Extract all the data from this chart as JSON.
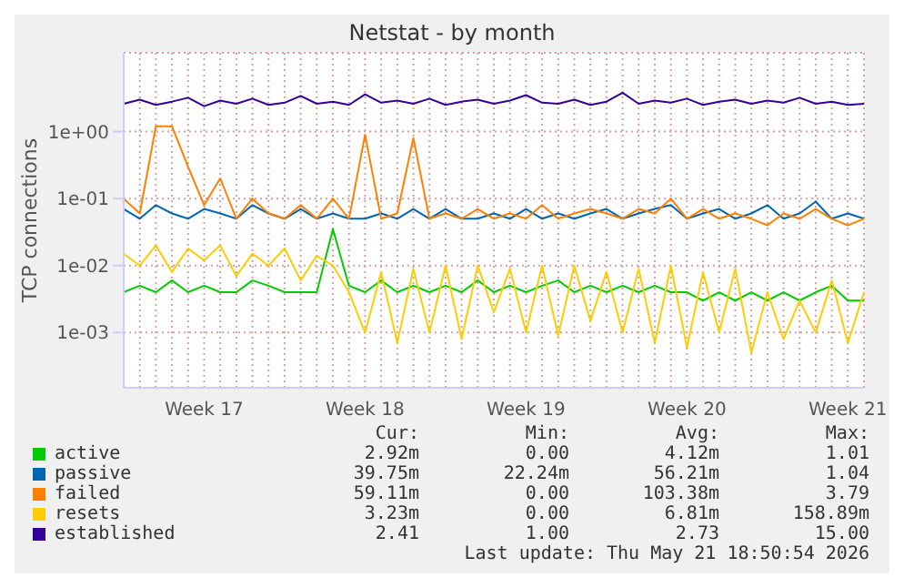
{
  "chart_data": {
    "type": "line",
    "title": "Netstat - by month",
    "ylabel": "TCP connections",
    "log": "y",
    "grid": true,
    "legend": "bottom",
    "marker": "none",
    "line_style": "solid",
    "categories": [
      null,
      null,
      null,
      null,
      null,
      "Week 17",
      null,
      null,
      null,
      null,
      null,
      null,
      null,
      null,
      null,
      "Week 18",
      null,
      null,
      null,
      null,
      null,
      null,
      null,
      null,
      null,
      "Week 19",
      null,
      null,
      null,
      null,
      null,
      null,
      null,
      null,
      null,
      "Week 20",
      null,
      null,
      null,
      null,
      null,
      null,
      null,
      null,
      null,
      "Week 21",
      null
    ],
    "ylim": [
      0.00015,
      15
    ],
    "yticks": [
      {
        "value": 0.001,
        "label": "1e-03"
      },
      {
        "value": 0.01,
        "label": "1e-02"
      },
      {
        "value": 0.1,
        "label": "1e-01"
      },
      {
        "value": 1,
        "label": "1e+00"
      }
    ],
    "series": [
      {
        "name": "active",
        "color": "#00cc00",
        "values": [
          0.004,
          0.005,
          0.004,
          0.006,
          0.004,
          0.005,
          0.004,
          0.004,
          0.006,
          0.005,
          0.004,
          0.004,
          0.004,
          0.035,
          0.005,
          0.004,
          0.006,
          0.004,
          0.005,
          0.004,
          0.005,
          0.004,
          0.006,
          0.004,
          0.005,
          0.004,
          0.005,
          0.006,
          0.004,
          0.005,
          0.004,
          0.005,
          0.004,
          0.005,
          0.004,
          0.004,
          0.003,
          0.004,
          0.003,
          0.004,
          0.003,
          0.004,
          0.003,
          0.004,
          0.005,
          0.003,
          0.003
        ]
      },
      {
        "name": "passive",
        "color": "#0066b3",
        "values": [
          0.07,
          0.05,
          0.08,
          0.06,
          0.05,
          0.07,
          0.06,
          0.05,
          0.08,
          0.06,
          0.05,
          0.07,
          0.05,
          0.06,
          0.05,
          0.05,
          0.06,
          0.05,
          0.07,
          0.05,
          0.07,
          0.05,
          0.05,
          0.06,
          0.05,
          0.07,
          0.05,
          0.06,
          0.05,
          0.06,
          0.07,
          0.05,
          0.06,
          0.07,
          0.08,
          0.05,
          0.06,
          0.07,
          0.05,
          0.06,
          0.08,
          0.05,
          0.06,
          0.09,
          0.05,
          0.06,
          0.05
        ]
      },
      {
        "name": "failed",
        "color": "#ff8000",
        "values": [
          0.1,
          0.06,
          1.2,
          1.2,
          0.3,
          0.08,
          0.2,
          0.05,
          0.1,
          0.06,
          0.05,
          0.08,
          0.05,
          0.1,
          0.05,
          0.9,
          0.05,
          0.06,
          0.8,
          0.05,
          0.06,
          0.05,
          0.07,
          0.05,
          0.06,
          0.05,
          0.08,
          0.05,
          0.06,
          0.07,
          0.06,
          0.05,
          0.07,
          0.06,
          0.1,
          0.05,
          0.07,
          0.05,
          0.06,
          0.05,
          0.04,
          0.06,
          0.05,
          0.07,
          0.05,
          0.04,
          0.05
        ]
      },
      {
        "name": "resets",
        "color": "#ffcc00",
        "values": [
          0.015,
          0.01,
          0.02,
          0.008,
          0.018,
          0.012,
          0.02,
          0.007,
          0.015,
          0.01,
          0.018,
          0.006,
          0.014,
          0.01,
          0.004,
          0.001,
          0.008,
          0.0007,
          0.009,
          0.001,
          0.01,
          0.0008,
          0.01,
          0.002,
          0.009,
          0.001,
          0.01,
          0.0009,
          0.01,
          0.0015,
          0.008,
          0.001,
          0.009,
          0.0007,
          0.01,
          0.0006,
          0.008,
          0.001,
          0.009,
          0.0005,
          0.004,
          0.0008,
          0.003,
          0.001,
          0.006,
          0.0007,
          0.004
        ]
      },
      {
        "name": "established",
        "color": "#330099",
        "values": [
          2.6,
          3.0,
          2.5,
          2.8,
          3.2,
          2.4,
          2.9,
          2.6,
          3.1,
          2.5,
          2.7,
          3.4,
          2.6,
          2.8,
          2.5,
          3.6,
          2.7,
          2.9,
          2.6,
          3.1,
          2.5,
          2.8,
          3.0,
          2.6,
          2.9,
          3.5,
          2.7,
          2.6,
          3.0,
          2.5,
          2.8,
          3.8,
          2.6,
          2.9,
          2.7,
          3.1,
          2.5,
          2.8,
          3.0,
          2.6,
          2.9,
          2.7,
          3.2,
          2.6,
          2.8,
          2.5,
          2.6
        ]
      }
    ],
    "annotations": [
      "Cur:",
      "Min:",
      "Avg:",
      "Max:",
      "2.92m",
      "0.00",
      "4.12m",
      "1.01",
      "39.75m",
      "22.24m",
      "56.21m",
      "1.04",
      "59.11m",
      "0.00",
      "103.38m",
      "3.79",
      "3.23m",
      "0.00",
      "6.81m",
      "158.89m",
      "2.41",
      "1.00",
      "2.73",
      "15.00",
      "Last update: Thu May 21 18:50:54 2026"
    ]
  }
}
